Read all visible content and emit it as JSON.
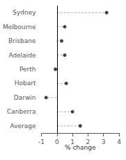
{
  "chart_data": {
    "type": "lollipop",
    "orientation": "horizontal",
    "categories": [
      "Sydney",
      "Melbourne",
      "Brisbane",
      "Adelaide",
      "Perth",
      "Hobart",
      "Darwin",
      "Canberra",
      "Average"
    ],
    "values": [
      3.2,
      0.5,
      0.3,
      0.5,
      -0.1,
      0.6,
      -0.7,
      1.0,
      1.5
    ],
    "xlim": [
      -1,
      4
    ],
    "xticks": [
      -1,
      0,
      1,
      2,
      3,
      4
    ],
    "xlabel": "% change",
    "color": "#111111",
    "line_style": "dashed",
    "marker": "circle",
    "grid": false
  }
}
